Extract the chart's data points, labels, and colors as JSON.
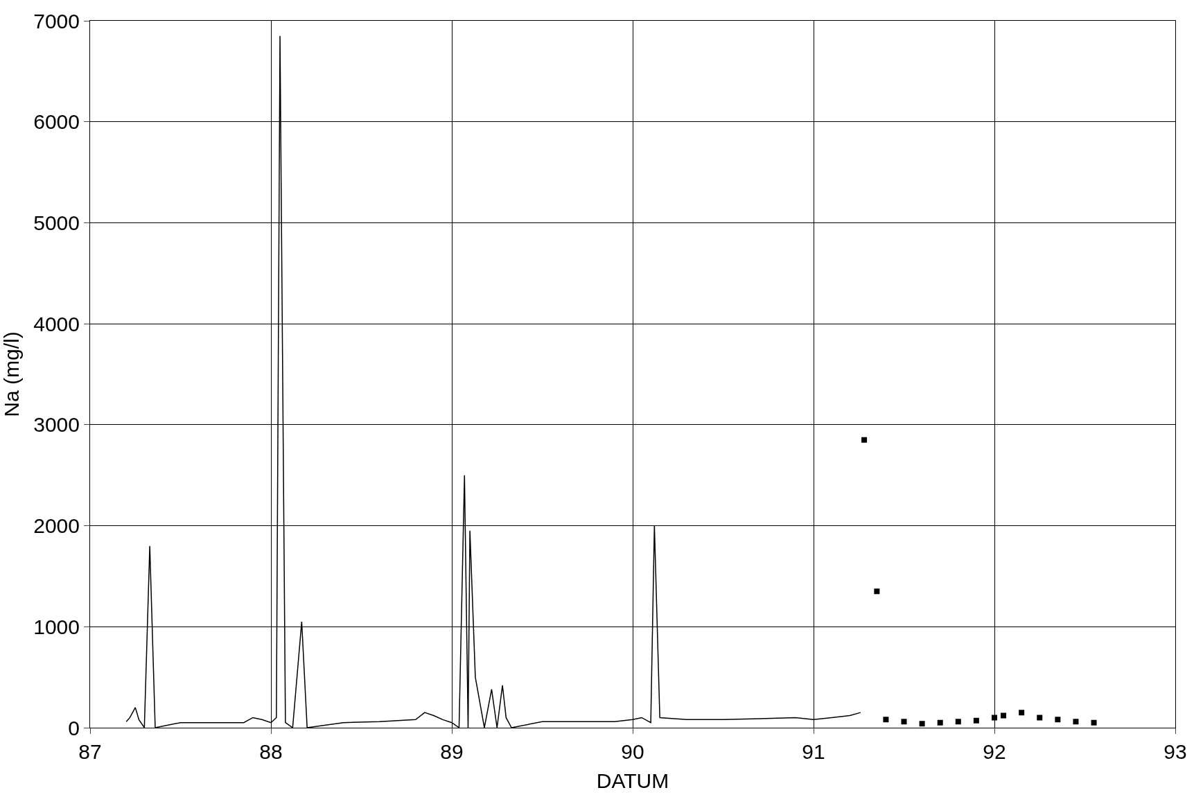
{
  "chart_data": {
    "type": "line",
    "xlabel": "DATUM",
    "ylabel": "Na (mg/l)",
    "xlim": [
      87,
      93
    ],
    "xticks": [
      87,
      88,
      89,
      90,
      91,
      92,
      93
    ],
    "ylim": [
      0,
      7000
    ],
    "yticks": [
      0,
      1000,
      2000,
      3000,
      4000,
      5000,
      6000,
      7000
    ],
    "grid": true,
    "legend": false,
    "series": [
      {
        "color": "#000000",
        "line_style": "solid",
        "marker": "none",
        "x": [
          87.2,
          87.22,
          87.25,
          87.27,
          87.3,
          87.33,
          87.36,
          87.5,
          87.7,
          87.85,
          87.9,
          87.95,
          88.0,
          88.03,
          88.05,
          88.08,
          88.12,
          88.17,
          88.2,
          88.4,
          88.6,
          88.8,
          88.85,
          88.9,
          88.95,
          89.0,
          89.04,
          89.07,
          89.09,
          89.1,
          89.13,
          89.18,
          89.22,
          89.25,
          89.28,
          89.3,
          89.33,
          89.5,
          89.7,
          89.9,
          90.0,
          90.05,
          90.1,
          90.12,
          90.15,
          90.3,
          90.5,
          90.7,
          90.9,
          91.0,
          91.1,
          91.2,
          91.26
        ],
        "values": [
          60,
          100,
          200,
          80,
          0,
          1800,
          0,
          50,
          50,
          50,
          100,
          80,
          50,
          100,
          6850,
          50,
          0,
          1050,
          0,
          50,
          60,
          80,
          150,
          120,
          80,
          50,
          0,
          2500,
          0,
          1950,
          500,
          0,
          380,
          0,
          420,
          100,
          0,
          60,
          60,
          60,
          80,
          100,
          50,
          2000,
          100,
          80,
          80,
          90,
          100,
          80,
          100,
          120,
          150
        ]
      },
      {
        "type": "scatter",
        "color": "#000000",
        "marker": "square",
        "x": [
          91.28,
          91.35,
          91.4,
          91.5,
          91.6,
          91.7,
          91.8,
          91.9,
          92.0,
          92.05,
          92.15,
          92.25,
          92.35,
          92.45,
          92.55
        ],
        "values": [
          2850,
          1350,
          80,
          60,
          40,
          50,
          60,
          70,
          100,
          120,
          150,
          100,
          80,
          60,
          50
        ]
      }
    ]
  }
}
